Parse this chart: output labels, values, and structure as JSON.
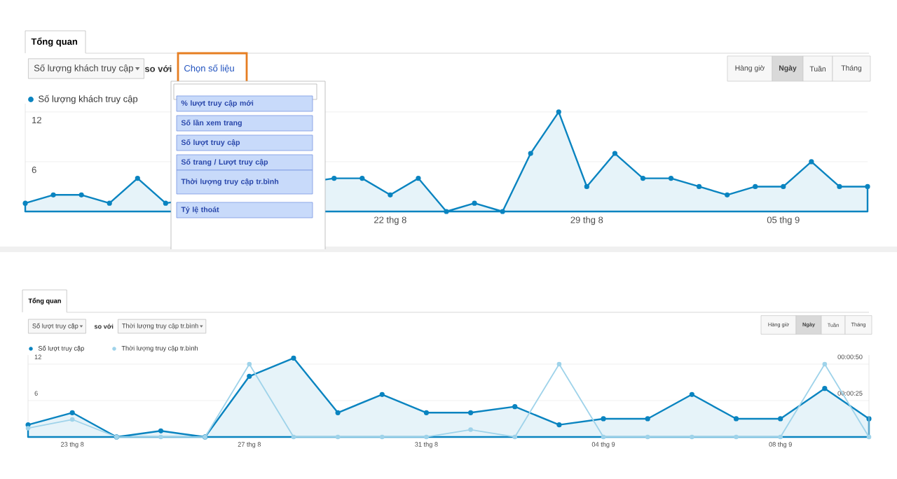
{
  "chart_data": [
    {
      "type": "area",
      "marker": "circle",
      "grid": "y",
      "legend": "top left",
      "categories": [
        null,
        null,
        null,
        null,
        null,
        null,
        null,
        null,
        null,
        null,
        null,
        null,
        null,
        "22 thg 8",
        null,
        null,
        null,
        null,
        null,
        null,
        "29 thg 8",
        null,
        null,
        null,
        null,
        null,
        null,
        "05 thg 9",
        null,
        null,
        null
      ],
      "series": [
        {
          "name": "Số lượng khách truy cập",
          "color": "#0a84c0",
          "values": [
            1,
            2,
            2,
            1,
            4,
            1,
            null,
            null,
            null,
            null,
            null,
            4,
            4,
            2,
            4,
            0,
            1,
            0,
            7,
            12,
            3,
            7,
            4,
            4,
            3,
            2,
            3,
            3,
            6,
            3,
            3
          ]
        }
      ],
      "ylim": [
        0,
        13
      ],
      "yticks": [
        6,
        12
      ],
      "annotations": [
        "Tổng quan",
        "Số lượng khách truy cập",
        "so với",
        "Chọn số liệu",
        "% lượt truy cập mới",
        "Số lần xem trang",
        "Số lượt truy cập",
        "Số trang / Lượt truy cập",
        "Thời lượng truy cập tr.bình",
        "Tỷ lệ thoát",
        "Hàng giờ",
        "Ngày",
        "Tuần",
        "Tháng"
      ]
    },
    {
      "type": "area",
      "marker": "circle",
      "grid": "y",
      "legend": "top left",
      "categories": [
        null,
        "23 thg 8",
        null,
        null,
        null,
        "27 thg 8",
        null,
        null,
        null,
        "31 thg 8",
        null,
        null,
        null,
        "04 thg 9",
        null,
        null,
        null,
        "08 thg 9",
        null,
        null
      ],
      "series": [
        {
          "name": "Số lượt truy cập",
          "color": "#0a84c0",
          "values": [
            2,
            4,
            0,
            1,
            0,
            10,
            13,
            4,
            7,
            4,
            4,
            5,
            2,
            3,
            3,
            7,
            3,
            3,
            8,
            3
          ]
        },
        {
          "name": "Thời lượng truy cập tr.bình",
          "color": "#9fd3ea",
          "type": "line",
          "axis": "y2",
          "values": [
            6,
            12,
            0,
            0,
            0,
            50,
            0,
            0,
            0,
            0,
            5,
            0,
            50,
            0,
            0,
            0,
            0,
            0,
            50,
            0
          ]
        }
      ],
      "ylim": [
        0,
        13.5
      ],
      "yticks": [
        6,
        12
      ],
      "y2lim": [
        0,
        56.25
      ],
      "y2ticks": [
        {
          "value": 25,
          "label": "00:00:25"
        },
        {
          "value": 50,
          "label": "00:00:50"
        }
      ],
      "annotations": [
        "Tổng quan",
        "Số lượt truy cập",
        "so với",
        "Thời lượng truy cập tr.bình",
        "Hàng giờ",
        "Ngày",
        "Tuần",
        "Tháng"
      ]
    }
  ]
}
